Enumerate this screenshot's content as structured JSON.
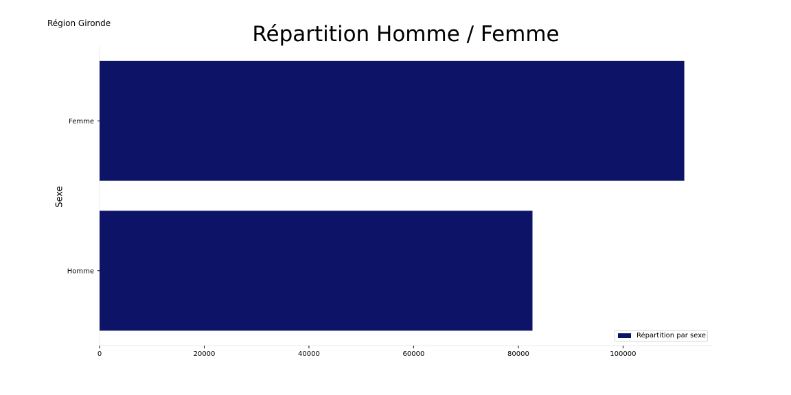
{
  "header": {
    "region_label": "Région Gironde"
  },
  "chart_data": {
    "type": "bar",
    "orientation": "horizontal",
    "title": "Répartition Homme / Femme",
    "xlabel": "",
    "ylabel": "Sexe",
    "categories": [
      "Femme",
      "Homme"
    ],
    "series": [
      {
        "name": "Répartition par sexe",
        "values": [
          111700,
          82700
        ],
        "color": "#0d1467"
      }
    ],
    "xlim": [
      0,
      117000
    ],
    "xticks": [
      0,
      20000,
      40000,
      60000,
      80000,
      100000
    ],
    "xtick_labels": [
      "0",
      "20000",
      "40000",
      "60000",
      "80000",
      "100000"
    ],
    "grid": false,
    "legend_position": "bottom-right"
  }
}
